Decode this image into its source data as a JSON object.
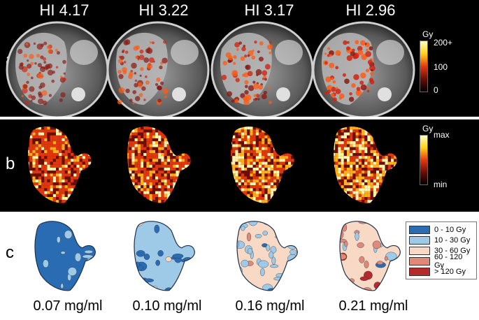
{
  "panel_a": {
    "row_label": "a",
    "titles": [
      "HI 4.17",
      "HI 3.22",
      "HI 3.17",
      "HI 2.96"
    ],
    "colorbar": {
      "unit": "Gy",
      "max": "200+",
      "mid": "100",
      "min": "0"
    }
  },
  "panel_b": {
    "row_label": "b",
    "colorbar": {
      "unit": "Gy",
      "max": "max",
      "min": "min"
    }
  },
  "panel_c": {
    "row_label": "c",
    "concentrations": [
      "0.07 mg/ml",
      "0.10 mg/ml",
      "0.16 mg/ml",
      "0.21 mg/ml"
    ],
    "legend": [
      {
        "label": "0 - 10 Gy",
        "color": "#2a6cb3"
      },
      {
        "label": "10 - 30 Gy",
        "color": "#9ecae8"
      },
      {
        "label": "30 - 60 Gy",
        "color": "#f7d9c6"
      },
      {
        "label": "60 - 120 Gy",
        "color": "#df8a79"
      },
      {
        "label": "> 120 Gy",
        "color": "#b52a2a"
      }
    ]
  }
}
